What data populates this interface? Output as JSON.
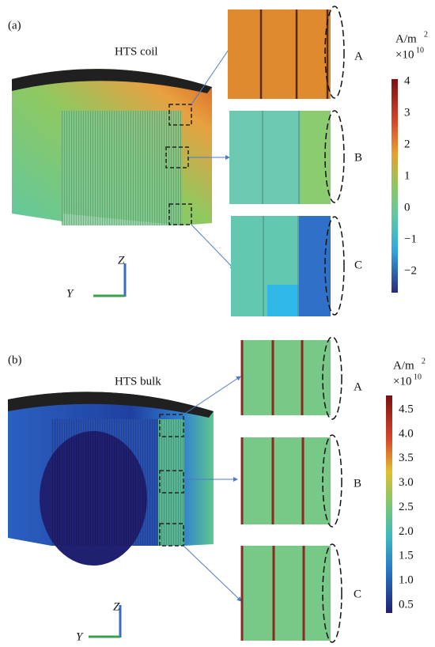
{
  "panels": [
    {
      "label": "(a)",
      "title": "HTS coil",
      "zoom_labels": [
        "A",
        "B",
        "C"
      ],
      "axis_z": "Z",
      "axis_y": "Y",
      "colorbar": {
        "unit": "A/m",
        "unit_exp": "2",
        "scale": "×10",
        "scale_exp": "10",
        "ticks": [
          "4",
          "3",
          "2",
          "1",
          "0",
          "−1",
          "−2"
        ]
      }
    },
    {
      "label": "(b)",
      "title": "HTS bulk",
      "zoom_labels": [
        "A",
        "B",
        "C"
      ],
      "axis_z": "Z",
      "axis_y": "Y",
      "colorbar": {
        "unit": "A/m",
        "unit_exp": "2",
        "scale": "×10",
        "scale_exp": "10",
        "ticks": [
          "4.5",
          "4.0",
          "3.5",
          "3.0",
          "2.5",
          "2.0",
          "1.5",
          "1.0",
          "0.5"
        ]
      }
    }
  ]
}
